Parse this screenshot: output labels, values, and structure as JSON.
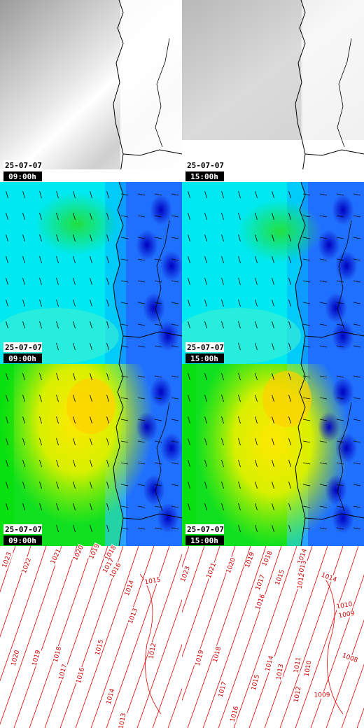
{
  "panels": [
    {
      "date": "25-07-07",
      "time": "09:00h"
    },
    {
      "date": "25-07-07",
      "time": "15:00h"
    },
    {
      "date": "25-07-07",
      "time": "09:00h"
    },
    {
      "date": "25-07-07",
      "time": "15:00h"
    },
    {
      "date": "25-07-07",
      "time": "09:00h"
    },
    {
      "date": "25-07-07",
      "time": "15:00h"
    }
  ],
  "isobars": {
    "left": [
      "1023",
      "1022",
      "1021",
      "1020",
      "1019",
      "1018",
      "1017",
      "1016",
      "1015",
      "1014",
      "1013",
      "1012",
      "1020",
      "1019",
      "1018",
      "1017",
      "1016",
      "1015",
      "1014",
      "1013"
    ],
    "right": [
      "1023",
      "1021",
      "1020",
      "1019",
      "1018",
      "1017",
      "1016",
      "1015",
      "1014",
      "1013",
      "1012",
      "1014",
      "1010",
      "1009",
      "1019",
      "1018",
      "1017",
      "1016",
      "1015",
      "1014",
      "1013",
      "1012",
      "1011",
      "1010",
      "1008",
      "1009"
    ]
  }
}
